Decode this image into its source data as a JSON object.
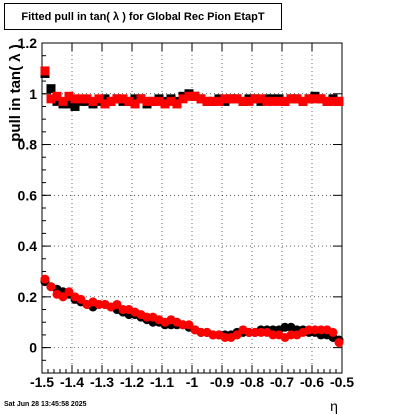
{
  "title": "Fitted pull in tan( λ ) for Global Rec Pion EtapT",
  "timestamp": "Sat Jun 28 13:45:58 2025",
  "colors": {
    "series_black": "#000000",
    "series_red": "#ff0000",
    "grid": "#000000"
  },
  "chart_data": {
    "type": "scatter",
    "title": "Fitted pull in tan( λ ) for Global Rec Pion EtapT",
    "xlabel": "η",
    "ylabel": "pull in tan( λ )",
    "xlim": [
      -1.5,
      -0.5
    ],
    "ylim": [
      -0.1,
      1.2
    ],
    "grid": true,
    "x_ticks": [
      "-1.5",
      "-1.4",
      "-1.3",
      "-1.2",
      "-1.1",
      "-1",
      "-0.9",
      "-0.8",
      "-0.7",
      "-0.6",
      "-0.5"
    ],
    "x_tick_values": [
      -1.5,
      -1.4,
      -1.3,
      -1.2,
      -1.1,
      -1.0,
      -0.9,
      -0.8,
      -0.7,
      -0.6,
      -0.5
    ],
    "y_ticks": [
      "0",
      "0.2",
      "0.4",
      "0.6",
      "0.8",
      "1",
      "1.2"
    ],
    "y_tick_values": [
      0,
      0.2,
      0.4,
      0.6,
      0.8,
      1.0,
      1.2
    ],
    "series": [
      {
        "marker": "square",
        "color": "#000000",
        "x": [
          -1.49,
          -1.47,
          -1.45,
          -1.43,
          -1.41,
          -1.39,
          -1.37,
          -1.35,
          -1.33,
          -1.31,
          -1.29,
          -1.27,
          -1.25,
          -1.23,
          -1.21,
          -1.19,
          -1.17,
          -1.15,
          -1.13,
          -1.11,
          -1.09,
          -1.07,
          -1.05,
          -1.03,
          -1.01,
          -0.99,
          -0.97,
          -0.95,
          -0.93,
          -0.91,
          -0.89,
          -0.87,
          -0.85,
          -0.83,
          -0.81,
          -0.79,
          -0.77,
          -0.75,
          -0.73,
          -0.71,
          -0.69,
          -0.67,
          -0.65,
          -0.63,
          -0.61,
          -0.59,
          -0.57,
          -0.55,
          -0.53,
          -0.51
        ],
        "y": [
          1.08,
          1.02,
          0.97,
          0.96,
          0.96,
          0.95,
          0.97,
          0.97,
          0.96,
          0.97,
          0.98,
          0.97,
          0.98,
          0.97,
          0.97,
          0.98,
          0.98,
          0.96,
          0.97,
          0.98,
          0.97,
          0.98,
          0.97,
          0.99,
          1.0,
          0.99,
          0.98,
          0.97,
          0.97,
          0.98,
          0.97,
          0.98,
          0.98,
          0.97,
          0.98,
          0.98,
          0.97,
          0.98,
          0.98,
          0.98,
          0.97,
          0.98,
          0.98,
          0.97,
          0.98,
          0.99,
          0.98,
          0.97,
          0.98,
          0.97
        ]
      },
      {
        "marker": "square",
        "color": "#ff0000",
        "x": [
          -1.49,
          -1.47,
          -1.45,
          -1.43,
          -1.41,
          -1.39,
          -1.37,
          -1.35,
          -1.33,
          -1.31,
          -1.29,
          -1.27,
          -1.25,
          -1.23,
          -1.21,
          -1.19,
          -1.17,
          -1.15,
          -1.13,
          -1.11,
          -1.09,
          -1.07,
          -1.05,
          -1.03,
          -1.01,
          -0.99,
          -0.97,
          -0.95,
          -0.93,
          -0.91,
          -0.89,
          -0.87,
          -0.85,
          -0.83,
          -0.81,
          -0.79,
          -0.77,
          -0.75,
          -0.73,
          -0.71,
          -0.69,
          -0.67,
          -0.65,
          -0.63,
          -0.61,
          -0.59,
          -0.57,
          -0.55,
          -0.53,
          -0.51
        ],
        "y": [
          1.09,
          0.98,
          0.99,
          0.97,
          0.99,
          0.98,
          0.98,
          0.98,
          0.97,
          0.98,
          0.96,
          0.97,
          0.98,
          0.98,
          0.97,
          0.96,
          0.98,
          0.97,
          0.97,
          0.97,
          0.96,
          0.97,
          0.96,
          0.98,
          0.99,
          0.99,
          0.98,
          0.97,
          0.97,
          0.97,
          0.98,
          0.98,
          0.98,
          0.97,
          0.97,
          0.98,
          0.98,
          0.97,
          0.97,
          0.97,
          0.97,
          0.98,
          0.98,
          0.97,
          0.98,
          0.98,
          0.98,
          0.97,
          0.97,
          0.97
        ]
      },
      {
        "marker": "circle",
        "color": "#000000",
        "x": [
          -1.49,
          -1.47,
          -1.45,
          -1.43,
          -1.41,
          -1.39,
          -1.37,
          -1.35,
          -1.33,
          -1.31,
          -1.29,
          -1.27,
          -1.25,
          -1.23,
          -1.21,
          -1.19,
          -1.17,
          -1.15,
          -1.13,
          -1.11,
          -1.09,
          -1.07,
          -1.05,
          -1.03,
          -1.01,
          -0.99,
          -0.97,
          -0.95,
          -0.93,
          -0.91,
          -0.89,
          -0.87,
          -0.85,
          -0.83,
          -0.81,
          -0.79,
          -0.77,
          -0.75,
          -0.73,
          -0.71,
          -0.69,
          -0.67,
          -0.65,
          -0.63,
          -0.61,
          -0.59,
          -0.57,
          -0.55,
          -0.53,
          -0.51
        ],
        "y": [
          0.26,
          0.24,
          0.23,
          0.22,
          0.21,
          0.19,
          0.18,
          0.17,
          0.16,
          0.17,
          0.17,
          0.16,
          0.15,
          0.14,
          0.13,
          0.13,
          0.12,
          0.11,
          0.1,
          0.1,
          0.09,
          0.09,
          0.09,
          0.09,
          0.08,
          0.07,
          0.06,
          0.06,
          0.05,
          0.05,
          0.05,
          0.05,
          0.06,
          0.06,
          0.06,
          0.06,
          0.07,
          0.07,
          0.07,
          0.07,
          0.08,
          0.08,
          0.07,
          0.07,
          0.06,
          0.06,
          0.05,
          0.05,
          0.04,
          0.03
        ]
      },
      {
        "marker": "circle",
        "color": "#ff0000",
        "x": [
          -1.49,
          -1.47,
          -1.45,
          -1.43,
          -1.41,
          -1.39,
          -1.37,
          -1.35,
          -1.33,
          -1.31,
          -1.29,
          -1.27,
          -1.25,
          -1.23,
          -1.21,
          -1.19,
          -1.17,
          -1.15,
          -1.13,
          -1.11,
          -1.09,
          -1.07,
          -1.05,
          -1.03,
          -1.01,
          -0.99,
          -0.97,
          -0.95,
          -0.93,
          -0.91,
          -0.89,
          -0.87,
          -0.85,
          -0.83,
          -0.81,
          -0.79,
          -0.77,
          -0.75,
          -0.73,
          -0.71,
          -0.69,
          -0.67,
          -0.65,
          -0.63,
          -0.61,
          -0.59,
          -0.57,
          -0.55,
          -0.53,
          -0.51
        ],
        "y": [
          0.27,
          0.24,
          0.21,
          0.2,
          0.22,
          0.2,
          0.19,
          0.17,
          0.18,
          0.17,
          0.17,
          0.16,
          0.17,
          0.15,
          0.15,
          0.14,
          0.13,
          0.12,
          0.12,
          0.11,
          0.1,
          0.11,
          0.1,
          0.09,
          0.09,
          0.07,
          0.06,
          0.06,
          0.05,
          0.05,
          0.04,
          0.04,
          0.05,
          0.07,
          0.06,
          0.06,
          0.06,
          0.06,
          0.05,
          0.05,
          0.04,
          0.05,
          0.05,
          0.06,
          0.07,
          0.07,
          0.07,
          0.07,
          0.06,
          0.02
        ]
      }
    ]
  }
}
